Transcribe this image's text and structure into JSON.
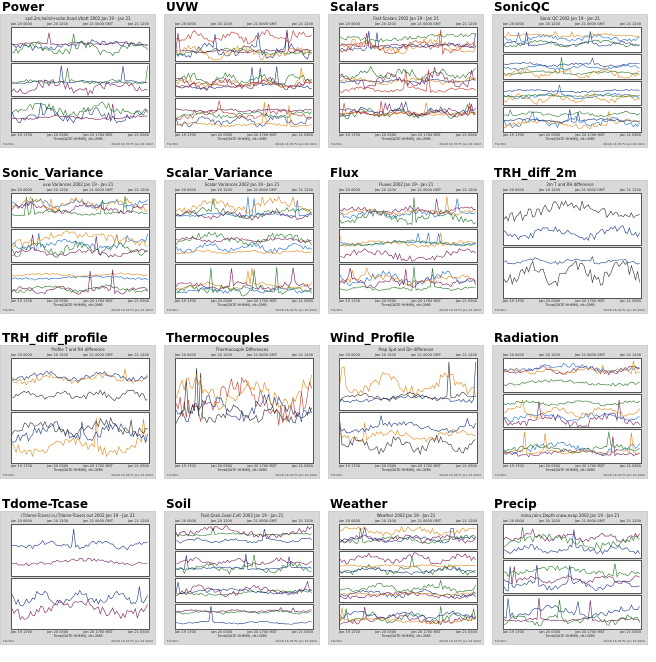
{
  "plots": [
    {
      "title": "Power",
      "plot_title": "spd.2m,twind+solar,Iload,Vbatt 2002 Jan 19 - Jan 21",
      "top_times": [
        "Jan 20 0000",
        "Jan 20 1200",
        "Jan 21 0000 GMT",
        "Jan 21 1200"
      ],
      "bottom_times": [
        "Jan 19 1700",
        "Jan 20 0500",
        "Jan 20 1700 MST",
        "Jan 21 0500"
      ],
      "x_title": "Time(DATE HHMM), dt=2MB",
      "footer_left": "FLUX01",
      "footer_right": "NCAR 16:34 Fri Jan 22 2002",
      "panels": 3,
      "colors": [
        "#1f3c88",
        "#7a1f5c",
        "#2a7a2a"
      ]
    },
    {
      "title": "UVW",
      "plot_title": "",
      "top_times": [
        "Jan 20 0000",
        "Jan 20 1200",
        "Jan 21 0000 GMT",
        "Jan 21 1200"
      ],
      "bottom_times": [
        "Jan 19 1700",
        "Jan 20 0500",
        "Jan 20 1700 MST",
        "Jan 21 0500"
      ],
      "x_title": "Time(DATE HHMM), dt=2MB",
      "footer_left": "FLUX01",
      "footer_right": "NCAR 16:34 Fri Jan 22 2002",
      "panels": 3,
      "colors": [
        "#1f3c88",
        "#c0392b",
        "#2a7a2a",
        "#e08a1e",
        "#7a1f5c"
      ]
    },
    {
      "title": "Scalars",
      "plot_title": "Fast Scalars 2002 Jan 19 - Jan 21",
      "top_times": [
        "Jan 20 0000",
        "Jan 20 1200",
        "Jan 21 0000 GMT",
        "Jan 21 1200"
      ],
      "bottom_times": [
        "Jan 19 1700",
        "Jan 20 0500",
        "Jan 20 1700 MST",
        "Jan 21 0500"
      ],
      "x_title": "Time(DATE HHMM), dt=2MB",
      "footer_left": "FLUX01",
      "footer_right": "NCAR 16:34 Fri Jan 22 2002",
      "panels": 3,
      "colors": [
        "#2a7a2a",
        "#1f3c88",
        "#c0392b",
        "#e08a1e",
        "#7a1f5c"
      ]
    },
    {
      "title": "SonicQC",
      "plot_title": "Sonic QC 2002 Jan 19 - Jan 21",
      "top_times": [
        "Jan 20 0000",
        "Jan 20 1200",
        "Jan 21 0000 GMT",
        "Jan 21 1200"
      ],
      "bottom_times": [
        "Jan 19 1700",
        "Jan 20 0500",
        "Jan 20 1700 MST",
        "Jan 21 0500"
      ],
      "x_title": "Time(DATE HHMM), dt=2MB",
      "footer_left": "FLUX01",
      "footer_right": "NCAR 16:34 Fri Jan 22 2002",
      "panels": 4,
      "colors": [
        "#1f6fd1",
        "#2a7a2a",
        "#e08a1e",
        "#1f3c88"
      ]
    },
    {
      "title": "Sonic_Variance",
      "plot_title": "uvw Variances 2002 Jan 19 - Jan 21",
      "top_times": [
        "Jan 20 0000",
        "Jan 20 1200",
        "Jan 21 0000 GMT",
        "Jan 21 1200"
      ],
      "bottom_times": [
        "Jan 19 1700",
        "Jan 20 0500",
        "Jan 20 1700 MST",
        "Jan 21 0500"
      ],
      "x_title": "Time(DATE HHMM), dt=2MB",
      "footer_left": "FLUX01",
      "footer_right": "NCAR 16:34 Fri Jan 22 2002",
      "panels": 3,
      "colors": [
        "#1f6fd1",
        "#2a7a2a",
        "#e08a1e",
        "#7a1f5c"
      ]
    },
    {
      "title": "Scalar_Variance",
      "plot_title": "Scalar Variances 2002 Jan 19 - Jan 21",
      "top_times": [
        "Jan 20 0000",
        "Jan 20 1200",
        "Jan 21 0000 GMT",
        "Jan 21 1200"
      ],
      "bottom_times": [
        "Jan 19 1700",
        "Jan 20 0500",
        "Jan 20 1700 MST",
        "Jan 21 0500"
      ],
      "x_title": "Time(DATE HHMM), dt=2MB",
      "footer_left": "FLUX01",
      "footer_right": "NCAR 16:34 Fri Jan 22 2002",
      "panels": 3,
      "colors": [
        "#1f6fd1",
        "#e08a1e",
        "#2a7a2a",
        "#7a1f5c"
      ]
    },
    {
      "title": "Flux",
      "plot_title": "Fluxes 2002 Jan 19 - Jan 21",
      "top_times": [
        "Jan 20 0000",
        "Jan 20 1200",
        "Jan 21 0000 GMT",
        "Jan 21 1200"
      ],
      "bottom_times": [
        "Jan 19 1700",
        "Jan 20 0500",
        "Jan 20 1700 MST",
        "Jan 21 0500"
      ],
      "x_title": "Time(DATE HHMM), dt=2MB",
      "footer_left": "FLUX01",
      "footer_right": "NCAR 16:34 Fri Jan 22 2002",
      "panels": 3,
      "colors": [
        "#1f6fd1",
        "#2a7a2a",
        "#e08a1e",
        "#7a1f5c"
      ]
    },
    {
      "title": "TRH_diff_2m",
      "plot_title": "2m T and RH difference",
      "top_times": [
        "Jan 20 0000",
        "Jan 20 1200",
        "Jan 21 0000 GMT",
        "Jan 21 1200"
      ],
      "bottom_times": [
        "Jan 19 1700",
        "Jan 20 0500",
        "Jan 20 1700 MST",
        "Jan 21 0500"
      ],
      "x_title": "Time(DATE HHMM), dt=2MB",
      "footer_left": "FLUX01",
      "footer_right": "NCAR 16:34 Fri Jan 22 2002",
      "panels": 2,
      "colors": [
        "#1f3c88",
        "#333333"
      ]
    },
    {
      "title": "TRH_diff_profile",
      "plot_title": "Profile T and RH difference",
      "top_times": [
        "Jan 20 0000",
        "Jan 20 1200",
        "Jan 21 0000 GMT",
        "Jan 21 1200"
      ],
      "bottom_times": [
        "Jan 19 1700",
        "Jan 20 0500",
        "Jan 20 1700 MST",
        "Jan 21 0500"
      ],
      "x_title": "Time(DATE HHMM), dt=2MB",
      "footer_left": "FLUX01",
      "footer_right": "NCAR 16:34 Fri Jan 22 2002",
      "panels": 2,
      "colors": [
        "#e08a1e",
        "#1f3c88",
        "#333333"
      ]
    },
    {
      "title": "Thermocouples",
      "plot_title": "Thermocouple Differences",
      "top_times": [
        "Jan 20 0000",
        "Jan 20 1200",
        "Jan 21 0000 GMT",
        "Jan 21 1200"
      ],
      "bottom_times": [
        "Jan 19 1700",
        "Jan 20 0500",
        "Jan 20 1700 MST",
        "Jan 21 0500"
      ],
      "x_title": "Time(DATE HHMM), dt=2MB",
      "footer_left": "FLUX01",
      "footer_right": "NCAR 16:34 Fri Jan 22 2002",
      "panels": 1,
      "colors": [
        "#c0392b",
        "#1f3c88",
        "#333333",
        "#e08a1e"
      ]
    },
    {
      "title": "Wind_Profile",
      "plot_title": "Prop Spd and Dir difference",
      "top_times": [
        "Jan 20 0000",
        "Jan 20 1200",
        "Jan 21 0000 GMT",
        "Jan 21 1200"
      ],
      "bottom_times": [
        "Jan 19 1700",
        "Jan 20 0500",
        "Jan 20 1700 MST",
        "Jan 21 0500"
      ],
      "x_title": "Time(DATE HHMM), dt=2MB",
      "footer_left": "FLUX01",
      "footer_right": "NCAR 16:34 Fri Jan 22 2002",
      "panels": 2,
      "colors": [
        "#e08a1e",
        "#1f3c88",
        "#333333"
      ]
    },
    {
      "title": "Radiation",
      "plot_title": "",
      "top_times": [
        "Jan 20 0000",
        "Jan 20 1200",
        "Jan 21 0000 GMT",
        "Jan 21 1200"
      ],
      "bottom_times": [
        "Jan 19 1700",
        "Jan 20 0500",
        "Jan 20 1700 MST",
        "Jan 21 0500"
      ],
      "x_title": "Time(DATE HHMM), dt=2MB",
      "footer_left": "FLUX01",
      "footer_right": "NCAR 16:34 Fri Jan 22 2002",
      "panels": 3,
      "colors": [
        "#7a1f5c",
        "#1f6fd1",
        "#2a7a2a",
        "#e08a1e"
      ]
    },
    {
      "title": "Tdome-Tcase",
      "plot_title": "(Tdome-Tcase).in,(Tdome-Tcase).out 2002 Jan 19 - Jan 21",
      "top_times": [
        "Jan 20 0000",
        "Jan 20 1200",
        "Jan 21 0000 GMT",
        "Jan 21 1200"
      ],
      "bottom_times": [
        "Jan 19 1700",
        "Jan 20 0500",
        "Jan 20 1700 MST",
        "Jan 21 0500"
      ],
      "x_title": "Time(DATE HHMM), dt=2MB",
      "footer_left": "FLUX01",
      "footer_right": "NCAR 16:34 Fri Jan 22 2002",
      "panels": 2,
      "colors": [
        "#1f3c88",
        "#7a1f5c"
      ]
    },
    {
      "title": "Soil",
      "plot_title": "Tsoil,Qsoil,Gsoil,Cvfc 2002 Jan 19 - Jan 21",
      "top_times": [
        "Jan 20 0000",
        "Jan 20 1200",
        "Jan 21 0000 GMT",
        "Jan 21 1200"
      ],
      "bottom_times": [
        "Jan 19 1700",
        "Jan 20 0500",
        "Jan 20 1700 MST",
        "Jan 21 0500"
      ],
      "x_title": "Time(DATE HHMM), dt=2MB",
      "footer_left": "FLUX01",
      "footer_right": "NCAR 16:34 Fri Jan 22 2002",
      "panels": 4,
      "colors": [
        "#2a7a2a",
        "#1f3c88",
        "#7a1f5c"
      ]
    },
    {
      "title": "Weather",
      "plot_title": "Weather 2002 Jan 19 - Jan 21",
      "top_times": [
        "Jan 20 0000",
        "Jan 20 1200",
        "Jan 21 0000 GMT",
        "Jan 21 1200"
      ],
      "bottom_times": [
        "Jan 19 1700",
        "Jan 20 0500",
        "Jan 20 1700 MST",
        "Jan 21 0500"
      ],
      "x_title": "Time(DATE HHMM), dt=2MB",
      "footer_left": "FLUX01",
      "footer_right": "NCAR 16:34 Fri Jan 22 2002",
      "panels": 4,
      "colors": [
        "#2a7a2a",
        "#7a1f5c",
        "#1f3c88",
        "#e08a1e"
      ]
    },
    {
      "title": "Precip",
      "plot_title": "raina,rainr,Depth.snow,evap 2002 Jan 19 - Jan 21",
      "top_times": [
        "Jan 20 0000",
        "Jan 20 1200",
        "Jan 21 0000 GMT",
        "Jan 21 1200"
      ],
      "bottom_times": [
        "Jan 19 1700",
        "Jan 20 0500",
        "Jan 20 1700 MST",
        "Jan 21 0500"
      ],
      "x_title": "Time(DATE HHMM), dt=2MB",
      "footer_left": "FLUX01",
      "footer_right": "NCAR 16:34 Fri Jan 22 2002",
      "panels": 3,
      "colors": [
        "#7a1f5c",
        "#1f3c88",
        "#2a7a2a"
      ]
    }
  ]
}
